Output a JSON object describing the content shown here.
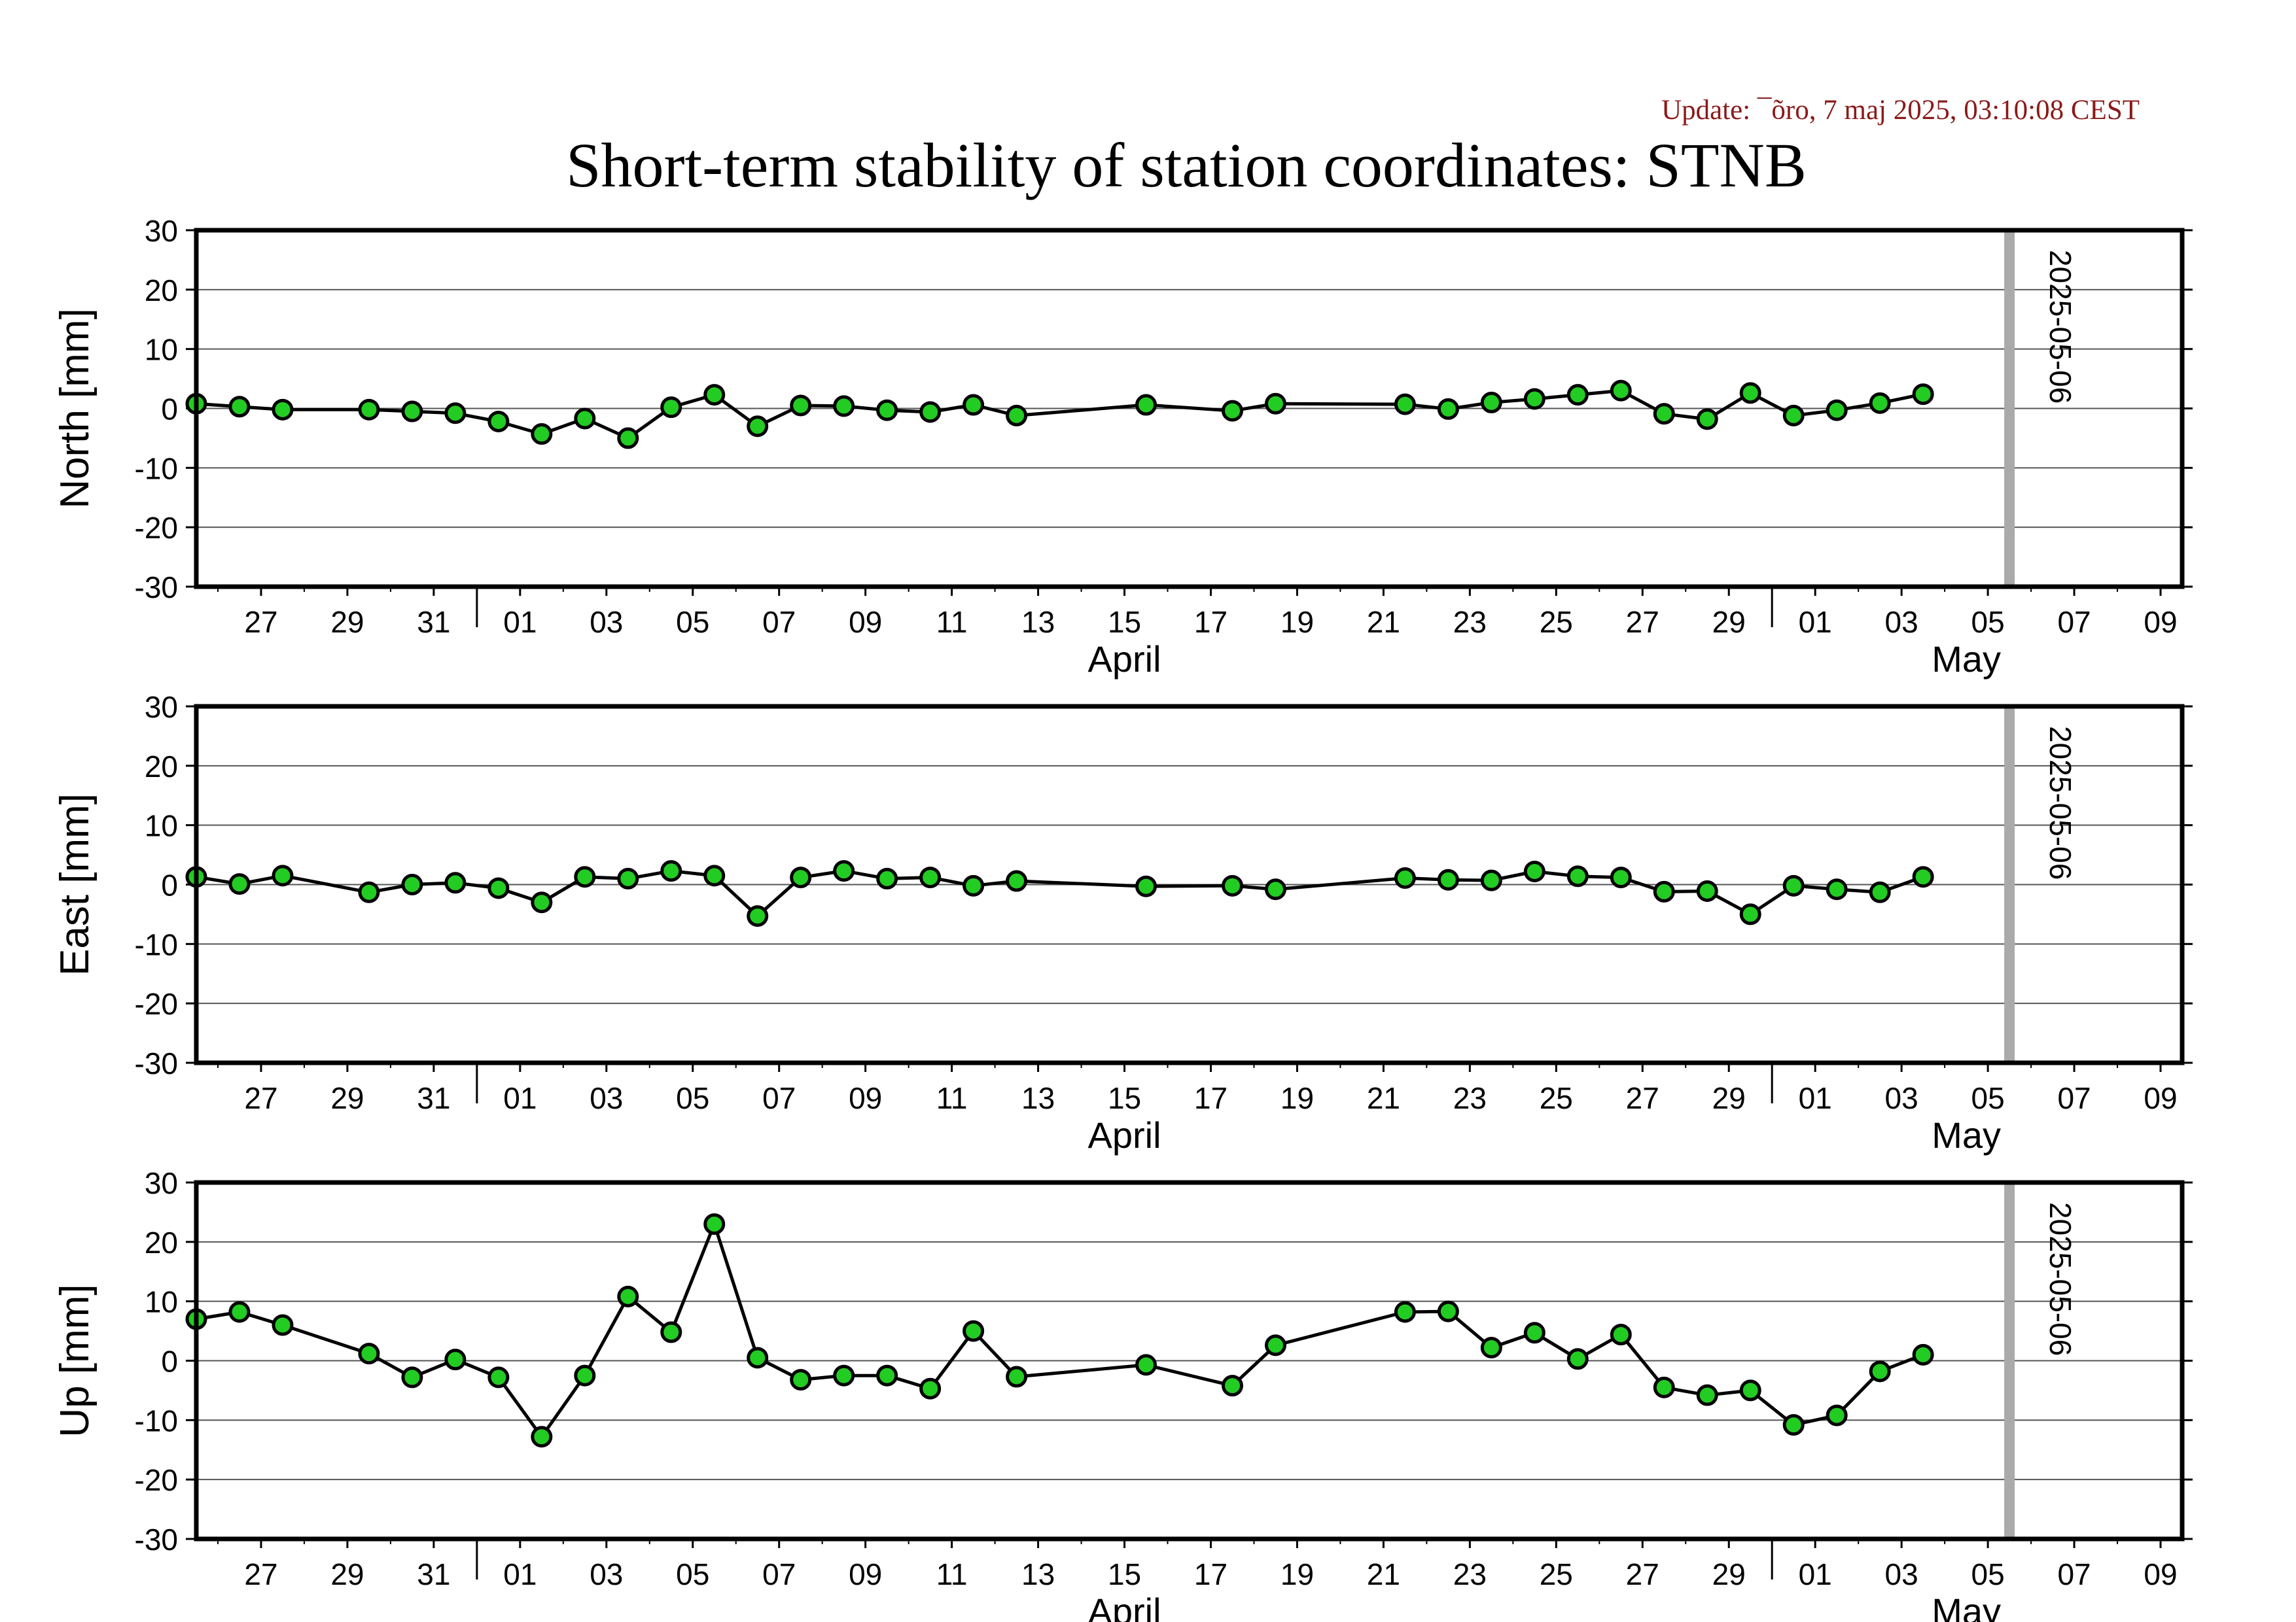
{
  "update_text": "Update: ¯õro, 7 maj 2025, 03:10:08 CEST",
  "colors": {
    "update": "#8b1a1a",
    "marker_fill": "#22cc22",
    "line": "#000000",
    "grid": "#555555",
    "marker_line": "#aaaaaa"
  },
  "chart_data": {
    "type": "line",
    "title": "Short-term stability of station coordinates: STNB",
    "x_range": [
      "2025-03-25T12:00",
      "2025-05-10T12:00"
    ],
    "x_tick_labels": [
      "27",
      "29",
      "31",
      "01",
      "03",
      "05",
      "07",
      "09",
      "11",
      "13",
      "15",
      "17",
      "19",
      "21",
      "23",
      "25",
      "27",
      "29",
      "01",
      "03",
      "05",
      "07",
      "09"
    ],
    "month_labels": [
      "April",
      "May"
    ],
    "marker_line": {
      "date": "2025-05-06",
      "label": "2025-05-06"
    },
    "ylim": [
      -30,
      30
    ],
    "y_ticks": [
      30,
      20,
      10,
      0,
      -10,
      -20,
      -30
    ],
    "panels": [
      {
        "ylabel": "North [mm]",
        "points": [
          [
            "2025-03-25T12:00",
            0.8
          ],
          [
            "2025-03-26T12:00",
            0.3
          ],
          [
            "2025-03-27T12:00",
            -0.2
          ],
          [
            "2025-03-29T12:00",
            -0.2
          ],
          [
            "2025-03-30T12:00",
            -0.5
          ],
          [
            "2025-03-31T12:00",
            -0.8
          ],
          [
            "2025-04-01T12:00",
            -2.2
          ],
          [
            "2025-04-02T12:00",
            -4.3
          ],
          [
            "2025-04-03T12:00",
            -1.7
          ],
          [
            "2025-04-04T12:00",
            -5.0
          ],
          [
            "2025-04-05T12:00",
            0.2
          ],
          [
            "2025-04-06T12:00",
            2.3
          ],
          [
            "2025-04-07T12:00",
            -3.0
          ],
          [
            "2025-04-08T12:00",
            0.5
          ],
          [
            "2025-04-09T12:00",
            0.4
          ],
          [
            "2025-04-10T12:00",
            -0.3
          ],
          [
            "2025-04-11T12:00",
            -0.6
          ],
          [
            "2025-04-12T12:00",
            0.6
          ],
          [
            "2025-04-13T12:00",
            -1.2
          ],
          [
            "2025-04-16T12:00",
            0.6
          ],
          [
            "2025-04-18T12:00",
            -0.4
          ],
          [
            "2025-04-19T12:00",
            0.8
          ],
          [
            "2025-04-22T12:00",
            0.7
          ],
          [
            "2025-04-23T12:00",
            -0.1
          ],
          [
            "2025-04-24T12:00",
            1.0
          ],
          [
            "2025-04-25T12:00",
            1.6
          ],
          [
            "2025-04-26T12:00",
            2.3
          ],
          [
            "2025-04-27T12:00",
            3.0
          ],
          [
            "2025-04-28T12:00",
            -0.9
          ],
          [
            "2025-04-29T12:00",
            -1.8
          ],
          [
            "2025-04-30T12:00",
            2.6
          ],
          [
            "2025-05-01T12:00",
            -1.2
          ],
          [
            "2025-05-02T12:00",
            -0.3
          ],
          [
            "2025-05-03T12:00",
            0.9
          ],
          [
            "2025-05-04T12:00",
            2.4
          ]
        ]
      },
      {
        "ylabel": "East [mm]",
        "points": [
          [
            "2025-03-25T12:00",
            1.3
          ],
          [
            "2025-03-26T12:00",
            0.1
          ],
          [
            "2025-03-27T12:00",
            1.5
          ],
          [
            "2025-03-29T12:00",
            -1.3
          ],
          [
            "2025-03-30T12:00",
            0.0
          ],
          [
            "2025-03-31T12:00",
            0.3
          ],
          [
            "2025-04-01T12:00",
            -0.6
          ],
          [
            "2025-04-02T12:00",
            -3.0
          ],
          [
            "2025-04-03T12:00",
            1.3
          ],
          [
            "2025-04-04T12:00",
            1.0
          ],
          [
            "2025-04-05T12:00",
            2.3
          ],
          [
            "2025-04-06T12:00",
            1.5
          ],
          [
            "2025-04-07T12:00",
            -5.3
          ],
          [
            "2025-04-08T12:00",
            1.2
          ],
          [
            "2025-04-09T12:00",
            2.3
          ],
          [
            "2025-04-10T12:00",
            1.0
          ],
          [
            "2025-04-11T12:00",
            1.2
          ],
          [
            "2025-04-12T12:00",
            -0.2
          ],
          [
            "2025-04-13T12:00",
            0.6
          ],
          [
            "2025-04-16T12:00",
            -0.3
          ],
          [
            "2025-04-18T12:00",
            -0.2
          ],
          [
            "2025-04-19T12:00",
            -0.8
          ],
          [
            "2025-04-22T12:00",
            1.1
          ],
          [
            "2025-04-23T12:00",
            0.8
          ],
          [
            "2025-04-24T12:00",
            0.7
          ],
          [
            "2025-04-25T12:00",
            2.2
          ],
          [
            "2025-04-26T12:00",
            1.4
          ],
          [
            "2025-04-27T12:00",
            1.2
          ],
          [
            "2025-04-28T12:00",
            -1.2
          ],
          [
            "2025-04-29T12:00",
            -1.1
          ],
          [
            "2025-04-30T12:00",
            -5.0
          ],
          [
            "2025-05-01T12:00",
            -0.2
          ],
          [
            "2025-05-02T12:00",
            -0.8
          ],
          [
            "2025-05-03T12:00",
            -1.3
          ],
          [
            "2025-05-04T12:00",
            1.3
          ]
        ]
      },
      {
        "ylabel": "Up [mm]",
        "points": [
          [
            "2025-03-25T12:00",
            7.0
          ],
          [
            "2025-03-26T12:00",
            8.2
          ],
          [
            "2025-03-27T12:00",
            6.0
          ],
          [
            "2025-03-29T12:00",
            1.2
          ],
          [
            "2025-03-30T12:00",
            -2.8
          ],
          [
            "2025-03-31T12:00",
            0.2
          ],
          [
            "2025-04-01T12:00",
            -2.8
          ],
          [
            "2025-04-02T12:00",
            -12.8
          ],
          [
            "2025-04-03T12:00",
            -2.5
          ],
          [
            "2025-04-04T12:00",
            10.8
          ],
          [
            "2025-04-05T12:00",
            4.8
          ],
          [
            "2025-04-06T12:00",
            23.0
          ],
          [
            "2025-04-07T12:00",
            0.5
          ],
          [
            "2025-04-08T12:00",
            -3.2
          ],
          [
            "2025-04-09T12:00",
            -2.5
          ],
          [
            "2025-04-10T12:00",
            -2.5
          ],
          [
            "2025-04-11T12:00",
            -4.7
          ],
          [
            "2025-04-12T12:00",
            5.0
          ],
          [
            "2025-04-13T12:00",
            -2.7
          ],
          [
            "2025-04-16T12:00",
            -0.7
          ],
          [
            "2025-04-18T12:00",
            -4.2
          ],
          [
            "2025-04-19T12:00",
            2.6
          ],
          [
            "2025-04-22T12:00",
            8.2
          ],
          [
            "2025-04-23T12:00",
            8.3
          ],
          [
            "2025-04-24T12:00",
            2.2
          ],
          [
            "2025-04-25T12:00",
            4.7
          ],
          [
            "2025-04-26T12:00",
            0.3
          ],
          [
            "2025-04-27T12:00",
            4.4
          ],
          [
            "2025-04-28T12:00",
            -4.5
          ],
          [
            "2025-04-29T12:00",
            -5.8
          ],
          [
            "2025-04-30T12:00",
            -5.0
          ],
          [
            "2025-05-01T12:00",
            -10.8
          ],
          [
            "2025-05-02T12:00",
            -9.2
          ],
          [
            "2025-05-03T12:00",
            -1.8
          ],
          [
            "2025-05-04T12:00",
            1.0
          ]
        ]
      }
    ]
  }
}
